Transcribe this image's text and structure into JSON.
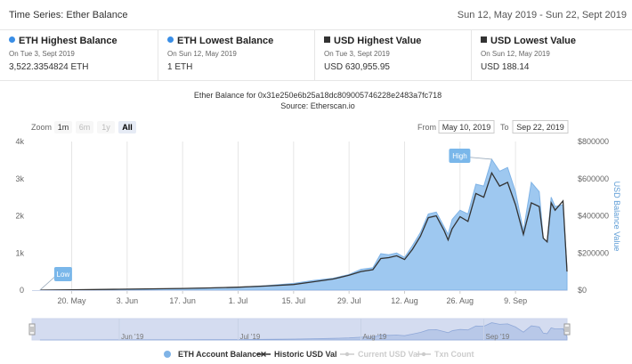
{
  "header": {
    "title": "Time Series: Ether Balance",
    "range": "Sun 12, May 2019 - Sun 22, Sept 2019"
  },
  "stats": [
    {
      "label": "ETH Highest Balance",
      "icon": "dot",
      "date": "On Tue 3, Sept 2019",
      "value": "3,522.3354824 ETH"
    },
    {
      "label": "ETH Lowest Balance",
      "icon": "dot",
      "date": "On Sun 12, May 2019",
      "value": "1 ETH"
    },
    {
      "label": "USD Highest Value",
      "icon": "square",
      "date": "On Tue 3, Sept 2019",
      "value": "USD 630,955.95"
    },
    {
      "label": "USD Lowest Value",
      "icon": "square",
      "date": "On Sun 12, May 2019",
      "value": "USD 188.14"
    }
  ],
  "zoom": {
    "label": "Zoom",
    "buttons": [
      "1m",
      "6m",
      "1y",
      "All"
    ],
    "selected": "All"
  },
  "date_range": {
    "from_label": "From",
    "from": "May 10, 2019",
    "to_label": "To",
    "to": "Sep 22, 2019"
  },
  "colors": {
    "area": "#9ec8f0",
    "area_stroke": "#7fb3e6",
    "line": "#333333",
    "flag": "#7ab7ea",
    "navigator": "#d4dcf0"
  },
  "chart_data": {
    "type": "area",
    "title": "Ether Balance for 0x31e250e6b25a18dc809005746228e2483a7fc718",
    "subtitle": "Source: Etherscan.io",
    "ylabel_right": "USD Balance Value",
    "y_left_ticks": [
      "0",
      "1k",
      "2k",
      "3k",
      "4k"
    ],
    "y_left_range": [
      0,
      4000
    ],
    "y_right_ticks": [
      "$0",
      "$200000",
      "$400000",
      "$600000",
      "$800000"
    ],
    "y_right_range": [
      0,
      800000
    ],
    "x_range": [
      "2019-05-10",
      "2019-09-22"
    ],
    "x_ticks": [
      {
        "label": "20. May",
        "date": "2019-05-20"
      },
      {
        "label": "3. Jun",
        "date": "2019-06-03"
      },
      {
        "label": "17. Jun",
        "date": "2019-06-17"
      },
      {
        "label": "1. Jul",
        "date": "2019-07-01"
      },
      {
        "label": "15. Jul",
        "date": "2019-07-15"
      },
      {
        "label": "29. Jul",
        "date": "2019-07-29"
      },
      {
        "label": "12. Aug",
        "date": "2019-08-12"
      },
      {
        "label": "26. Aug",
        "date": "2019-08-26"
      },
      {
        "label": "9. Sep",
        "date": "2019-09-09"
      }
    ],
    "flags": [
      {
        "label": "Low",
        "date": "2019-05-12"
      },
      {
        "label": "High",
        "date": "2019-09-03"
      }
    ],
    "navigator_labels": [
      {
        "label": "Jun '19",
        "date": "2019-06-01"
      },
      {
        "label": "Jul '19",
        "date": "2019-07-01"
      },
      {
        "label": "Aug '19",
        "date": "2019-08-01"
      },
      {
        "label": "Sep '19",
        "date": "2019-09-01"
      }
    ],
    "series": [
      {
        "name": "ETH Account Balance",
        "type": "area",
        "points": [
          [
            "2019-05-12",
            1
          ],
          [
            "2019-05-20",
            8
          ],
          [
            "2019-06-01",
            20
          ],
          [
            "2019-06-10",
            30
          ],
          [
            "2019-06-17",
            45
          ],
          [
            "2019-06-24",
            60
          ],
          [
            "2019-07-01",
            80
          ],
          [
            "2019-07-08",
            120
          ],
          [
            "2019-07-15",
            180
          ],
          [
            "2019-07-20",
            260
          ],
          [
            "2019-07-25",
            320
          ],
          [
            "2019-07-29",
            420
          ],
          [
            "2019-08-01",
            560
          ],
          [
            "2019-08-04",
            600
          ],
          [
            "2019-08-06",
            980
          ],
          [
            "2019-08-08",
            950
          ],
          [
            "2019-08-10",
            1000
          ],
          [
            "2019-08-12",
            880
          ],
          [
            "2019-08-14",
            1200
          ],
          [
            "2019-08-16",
            1550
          ],
          [
            "2019-08-18",
            2050
          ],
          [
            "2019-08-20",
            2100
          ],
          [
            "2019-08-22",
            1700
          ],
          [
            "2019-08-23",
            1500
          ],
          [
            "2019-08-24",
            1900
          ],
          [
            "2019-08-26",
            2150
          ],
          [
            "2019-08-28",
            2050
          ],
          [
            "2019-08-30",
            2850
          ],
          [
            "2019-09-01",
            2800
          ],
          [
            "2019-09-03",
            3522
          ],
          [
            "2019-09-05",
            3200
          ],
          [
            "2019-09-07",
            3300
          ],
          [
            "2019-09-09",
            2650
          ],
          [
            "2019-09-11",
            1600
          ],
          [
            "2019-09-13",
            2900
          ],
          [
            "2019-09-15",
            2650
          ],
          [
            "2019-09-16",
            1400
          ],
          [
            "2019-09-17",
            1300
          ],
          [
            "2019-09-18",
            2500
          ],
          [
            "2019-09-19",
            2250
          ],
          [
            "2019-09-21",
            2300
          ],
          [
            "2019-09-22",
            600
          ]
        ]
      },
      {
        "name": "Historic USD Val",
        "type": "line",
        "points": [
          [
            "2019-05-12",
            188
          ],
          [
            "2019-05-20",
            2000
          ],
          [
            "2019-06-01",
            5000
          ],
          [
            "2019-06-10",
            7000
          ],
          [
            "2019-06-17",
            9000
          ],
          [
            "2019-06-24",
            12000
          ],
          [
            "2019-07-01",
            16000
          ],
          [
            "2019-07-08",
            22000
          ],
          [
            "2019-07-15",
            30000
          ],
          [
            "2019-07-20",
            45000
          ],
          [
            "2019-07-25",
            60000
          ],
          [
            "2019-07-29",
            80000
          ],
          [
            "2019-08-01",
            100000
          ],
          [
            "2019-08-04",
            110000
          ],
          [
            "2019-08-06",
            170000
          ],
          [
            "2019-08-08",
            175000
          ],
          [
            "2019-08-10",
            185000
          ],
          [
            "2019-08-12",
            165000
          ],
          [
            "2019-08-14",
            220000
          ],
          [
            "2019-08-16",
            290000
          ],
          [
            "2019-08-18",
            390000
          ],
          [
            "2019-08-20",
            400000
          ],
          [
            "2019-08-22",
            320000
          ],
          [
            "2019-08-23",
            270000
          ],
          [
            "2019-08-24",
            330000
          ],
          [
            "2019-08-26",
            395000
          ],
          [
            "2019-08-28",
            370000
          ],
          [
            "2019-08-30",
            520000
          ],
          [
            "2019-09-01",
            500000
          ],
          [
            "2019-09-03",
            630956
          ],
          [
            "2019-09-05",
            560000
          ],
          [
            "2019-09-07",
            580000
          ],
          [
            "2019-09-09",
            460000
          ],
          [
            "2019-09-11",
            300000
          ],
          [
            "2019-09-13",
            470000
          ],
          [
            "2019-09-15",
            450000
          ],
          [
            "2019-09-16",
            280000
          ],
          [
            "2019-09-17",
            260000
          ],
          [
            "2019-09-18",
            470000
          ],
          [
            "2019-09-19",
            430000
          ],
          [
            "2019-09-21",
            480000
          ],
          [
            "2019-09-22",
            100000
          ]
        ]
      }
    ],
    "legend": [
      {
        "name": "ETH Account Balance",
        "active": true
      },
      {
        "name": "Historic USD Val",
        "active": true
      },
      {
        "name": "Current USD Val",
        "active": false
      },
      {
        "name": "Txn Count",
        "active": false
      }
    ]
  }
}
